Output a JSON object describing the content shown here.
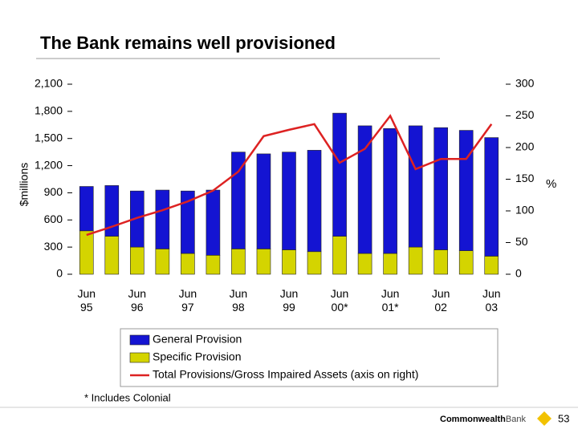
{
  "chart_data": {
    "type": "stacked_bar_line",
    "title": "The Bank remains well provisioned",
    "y_label": "$millions",
    "y2_label": "%",
    "categories": [
      "Jun 95",
      null,
      "Jun 96",
      null,
      "Jun 97",
      null,
      "Jun 98",
      null,
      "Jun 99",
      null,
      "Jun 00*",
      null,
      "Jun 01*",
      null,
      "Jun 02",
      null,
      "Jun 03"
    ],
    "series": [
      {
        "name": "Specific Provision",
        "color": "#d4d400",
        "values": [
          480,
          420,
          300,
          280,
          230,
          210,
          280,
          280,
          270,
          250,
          420,
          230,
          230,
          300,
          270,
          260,
          200
        ]
      },
      {
        "name": "General Provision",
        "color": "#1414d2",
        "values": [
          490,
          560,
          620,
          650,
          690,
          720,
          1070,
          1050,
          1080,
          1120,
          1360,
          1410,
          1380,
          1340,
          1350,
          1330,
          1310
        ]
      },
      {
        "name": "Total Provisions/Gross Impaired Assets (axis on right)",
        "color": "#dd2222",
        "axis": "y2",
        "values": [
          62,
          75,
          89,
          101,
          115,
          132,
          162,
          218,
          228,
          237,
          176,
          198,
          250,
          166,
          182,
          182,
          237
        ]
      }
    ],
    "ylim": [
      0,
      2100
    ],
    "yticks": [
      0,
      300,
      600,
      900,
      {
        "value": 1200,
        "label": "1,200"
      },
      {
        "value": 1500,
        "label": "1,500"
      },
      {
        "value": 1800,
        "label": "1,800"
      },
      {
        "value": 2100,
        "label": "2,100"
      }
    ],
    "y2lim": [
      0,
      300
    ],
    "y2ticks": [
      0,
      50,
      100,
      150,
      200,
      250,
      300
    ],
    "footnote": "* Includes Colonial",
    "page_number": "53",
    "logo_bold": "Commonwealth",
    "logo_light": "Bank"
  }
}
